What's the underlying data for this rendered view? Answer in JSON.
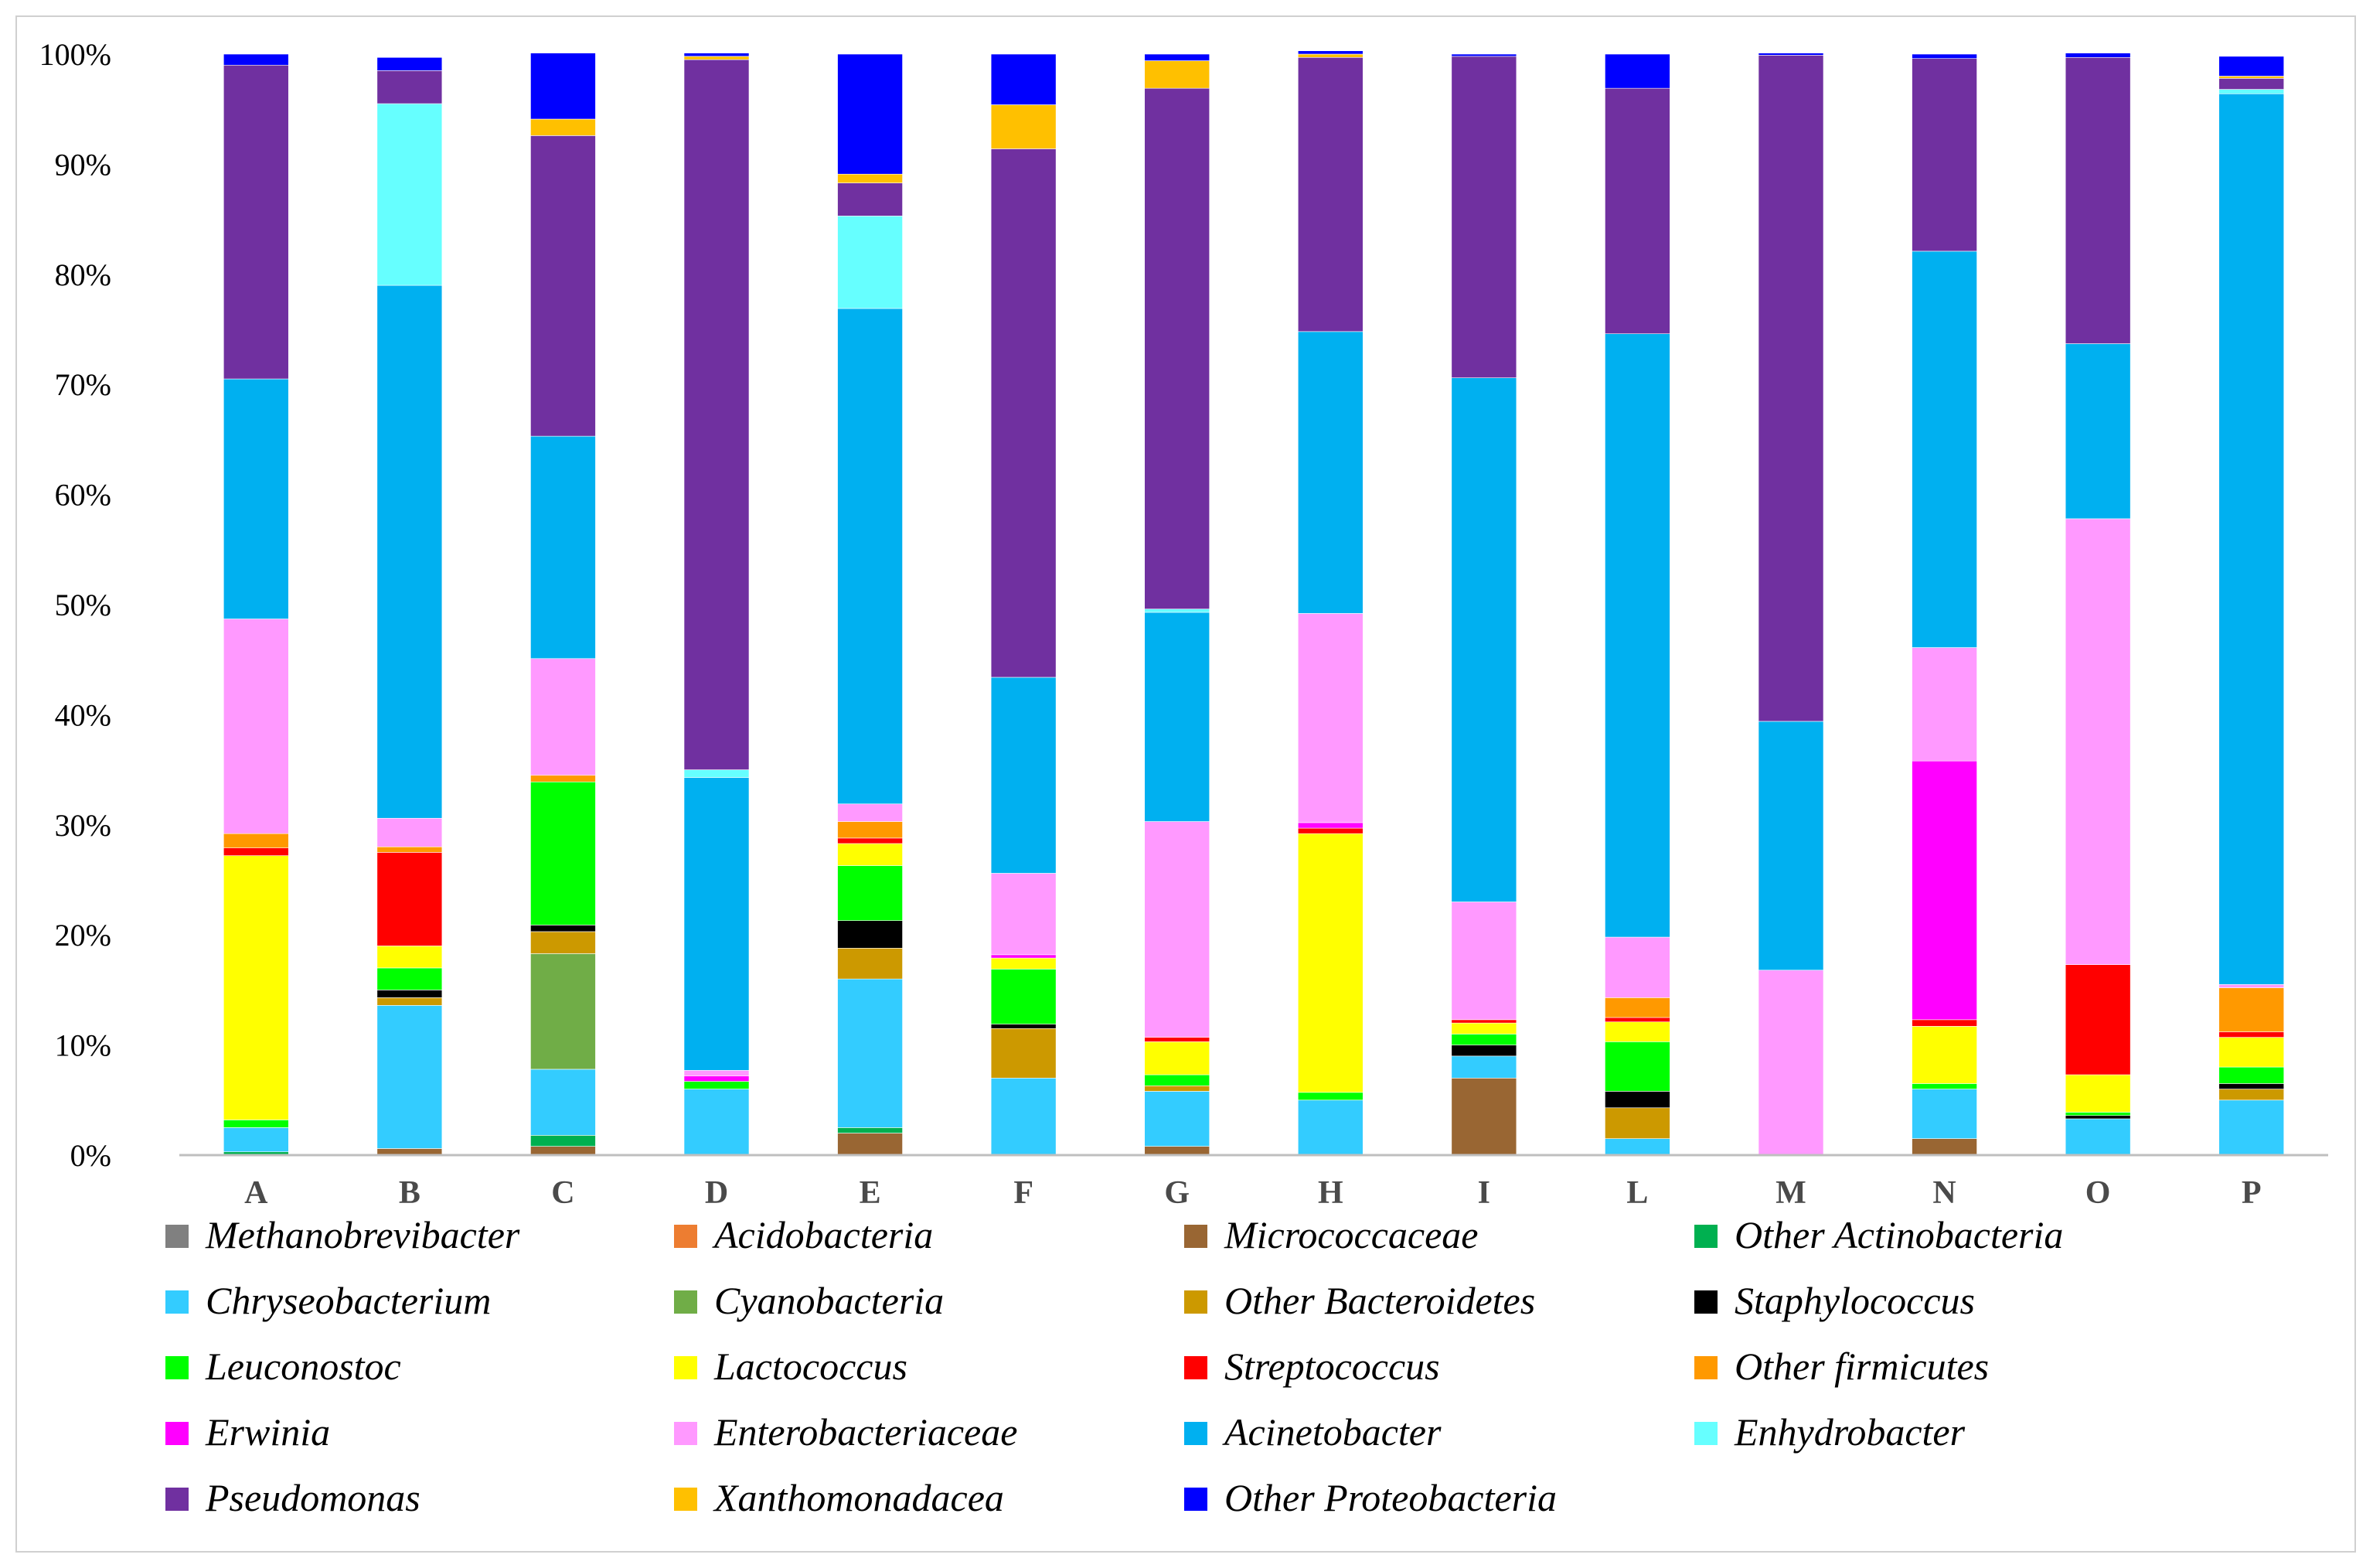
{
  "chart_data": {
    "type": "bar",
    "stacked": true,
    "title": "",
    "xlabel": "",
    "ylabel": "",
    "ylim": [
      0,
      100
    ],
    "yticks": [
      "0%",
      "10%",
      "20%",
      "30%",
      "40%",
      "50%",
      "60%",
      "70%",
      "80%",
      "90%",
      "100%"
    ],
    "grid": false,
    "legend_position": "bottom",
    "categories": [
      "A",
      "B",
      "C",
      "D",
      "E",
      "F",
      "G",
      "H",
      "I",
      "L",
      "M",
      "N",
      "O",
      "P"
    ],
    "series": [
      {
        "name": "Methanobrevibacter",
        "color": "#808080",
        "values": [
          0,
          0,
          0,
          0,
          0,
          0,
          0,
          0,
          0,
          0,
          0,
          0,
          0,
          0
        ]
      },
      {
        "name": "Acidobacteria",
        "color": "#ED7D31",
        "values": [
          0,
          0,
          0,
          0,
          0,
          0,
          0,
          0,
          0,
          0,
          0,
          0,
          0,
          0
        ]
      },
      {
        "name": "Micrococcaceae",
        "color": "#996633",
        "values": [
          0,
          0.6,
          0.8,
          0,
          2,
          0,
          0.8,
          0,
          7,
          0,
          0,
          1.5,
          0,
          0
        ]
      },
      {
        "name": "Other Actinobacteria",
        "color": "#00B050",
        "values": [
          0.3,
          0,
          1,
          0,
          0.5,
          0,
          0,
          0,
          0,
          0,
          0,
          0,
          0,
          0
        ]
      },
      {
        "name": "Chryseobacterium",
        "color": "#33CCFF",
        "values": [
          2.2,
          13,
          6,
          6,
          13.5,
          7,
          5,
          5,
          2,
          1.5,
          0,
          4.5,
          3.3,
          5
        ]
      },
      {
        "name": "Cyanobacteria",
        "color": "#70AD47",
        "values": [
          0,
          0,
          10.5,
          0,
          0,
          0,
          0,
          0,
          0,
          0,
          0,
          0,
          0,
          0
        ]
      },
      {
        "name": "Other Bacteroidetes",
        "color": "#CC9900",
        "values": [
          0,
          0.7,
          2,
          0,
          2.8,
          4.5,
          0.5,
          0,
          0,
          2.8,
          0,
          0,
          0,
          1
        ]
      },
      {
        "name": "Staphylococcus",
        "color": "#000000",
        "values": [
          0,
          0.7,
          0.6,
          0,
          2.5,
          0.4,
          0,
          0,
          1,
          1.5,
          0,
          0,
          0.3,
          0.5
        ]
      },
      {
        "name": "Leuconostoc",
        "color": "#00FF00",
        "values": [
          0.7,
          2,
          13,
          0.7,
          5,
          5,
          1,
          0.7,
          1,
          4.5,
          0,
          0.5,
          0.3,
          1.5
        ]
      },
      {
        "name": "Lactococcus",
        "color": "#FFFF00",
        "values": [
          24,
          2,
          0,
          0,
          2,
          1,
          3,
          23.5,
          1,
          1.8,
          0,
          5.2,
          3.4,
          2.7
        ]
      },
      {
        "name": "Streptococcus",
        "color": "#FF0000",
        "values": [
          0.7,
          8.5,
          0,
          0,
          0.5,
          0,
          0.4,
          0.5,
          0.3,
          0.4,
          0,
          0.6,
          10,
          0.5
        ]
      },
      {
        "name": "Other firmicutes",
        "color": "#FF9900",
        "values": [
          1.3,
          0.5,
          0.6,
          0,
          1.5,
          0,
          0,
          0,
          0,
          1.8,
          0,
          0,
          0,
          4
        ]
      },
      {
        "name": "Erwinia",
        "color": "#FF00FF",
        "values": [
          0,
          0,
          0,
          0.5,
          0,
          0.3,
          0,
          0.5,
          0,
          0,
          0,
          23.5,
          0,
          0
        ]
      },
      {
        "name": "Enterobacteriaceae",
        "color": "#FF99FF",
        "values": [
          19.5,
          2.6,
          10.6,
          0.5,
          1.6,
          7.4,
          19.6,
          19,
          10.7,
          5.5,
          16.8,
          10.3,
          40.5,
          0.3
        ]
      },
      {
        "name": "Acinetobacter",
        "color": "#00B0F0",
        "values": [
          21.8,
          48.4,
          20.2,
          26.6,
          45,
          17.8,
          19,
          25.6,
          47.6,
          54.8,
          22.6,
          36,
          15.9,
          80.9
        ]
      },
      {
        "name": "Enhydrobacter",
        "color": "#66FFFF",
        "values": [
          0,
          16.5,
          0,
          0.7,
          8.4,
          0,
          0.3,
          0,
          0,
          0,
          0,
          0,
          0,
          0.4
        ]
      },
      {
        "name": "Pseudomonas",
        "color": "#7030A0",
        "values": [
          28.5,
          3,
          27.3,
          64.5,
          3,
          48,
          47.3,
          24.9,
          29.2,
          22.3,
          60.5,
          17.5,
          26,
          1
        ]
      },
      {
        "name": "Xanthomonadacea",
        "color": "#FFC000",
        "values": [
          0,
          0,
          1.5,
          0.3,
          0.8,
          4,
          2.5,
          0.3,
          0,
          0,
          0,
          0,
          0,
          0.2
        ]
      },
      {
        "name": "Other Proteobacteria",
        "color": "#0000FF",
        "values": [
          1,
          1.2,
          6,
          0.3,
          10.9,
          4.6,
          0.6,
          0.3,
          0.2,
          3.1,
          0.2,
          0.4,
          0.4,
          1.8
        ]
      }
    ]
  }
}
